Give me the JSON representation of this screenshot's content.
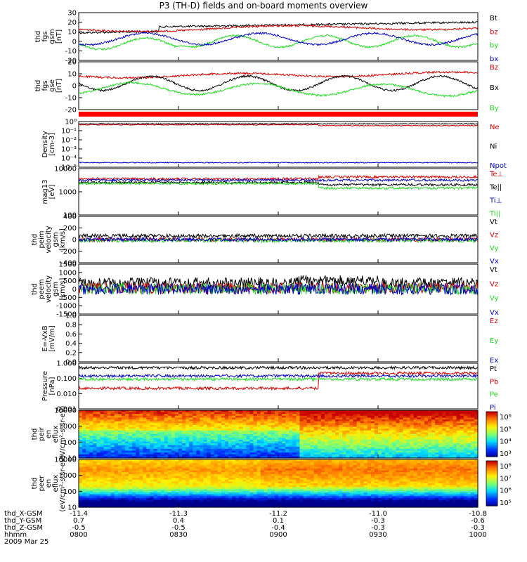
{
  "title": "P3 (TH-D) fields and on-board moments overview",
  "colors": {
    "black": "#000000",
    "red": "#dd0000",
    "green": "#22dd22",
    "blue": "#0000cc"
  },
  "chart_data": [
    {
      "type": "line",
      "id": "fgs-gsm",
      "ylabel": [
        "thd",
        "fgs",
        "gsm",
        "[nT]"
      ],
      "ylim": [
        -20,
        30
      ],
      "yticks": [
        "30",
        "20",
        "10",
        "0",
        "-10",
        "-20"
      ],
      "legend": [
        {
          "name": "Bt",
          "color": "black"
        },
        {
          "name": "bz",
          "color": "red"
        },
        {
          "name": "by",
          "color": "green"
        },
        {
          "name": "bx",
          "color": "blue"
        }
      ]
    },
    {
      "type": "line",
      "id": "fgs-gse",
      "ylabel": [
        "thd",
        "fgs",
        "gse",
        "[nT]"
      ],
      "ylim": [
        -30,
        20
      ],
      "yticks": [
        "20",
        "10",
        "0",
        "-10",
        "-20"
      ],
      "legend": [
        {
          "name": "Bz",
          "color": "red"
        },
        {
          "name": "Bx",
          "color": "black"
        },
        {
          "name": "By",
          "color": "green"
        }
      ]
    },
    {
      "type": "line",
      "id": "density",
      "ylabel": [
        "Density",
        "[cm-3]"
      ],
      "scale": "log",
      "ylim": [
        1e-05,
        1
      ],
      "yticks": [
        "10⁰",
        "10⁻¹",
        "10⁻²",
        "10⁻³",
        "10⁻⁴",
        "10⁻⁵"
      ],
      "legend": [
        {
          "name": "Ne",
          "color": "red"
        },
        {
          "name": "Ni",
          "color": "black"
        },
        {
          "name": "Npot",
          "color": "blue"
        }
      ]
    },
    {
      "type": "line",
      "id": "temperature",
      "ylabel": [
        "mag13",
        "[eV]"
      ],
      "scale": "log",
      "ylim": [
        100,
        10000
      ],
      "yticks": [
        "10000",
        "1000",
        "100"
      ],
      "legend": [
        {
          "name": "Te⊥",
          "color": "red"
        },
        {
          "name": "Te||",
          "color": "black"
        },
        {
          "name": "Ti⊥",
          "color": "blue"
        },
        {
          "name": "Ti||",
          "color": "green"
        }
      ]
    },
    {
      "type": "line",
      "id": "peim-velocity",
      "ylabel": [
        "thd",
        "peim",
        "velocity",
        "gsm",
        "[km/s]"
      ],
      "ylim": [
        -400,
        400
      ],
      "yticks": [
        "400",
        "200",
        "0",
        "-200",
        "-400"
      ],
      "legend": [
        {
          "name": "Vt",
          "color": "black"
        },
        {
          "name": "Vz",
          "color": "red"
        },
        {
          "name": "Vy",
          "color": "green"
        },
        {
          "name": "Vx",
          "color": "blue"
        }
      ]
    },
    {
      "type": "line",
      "id": "peem-velocity",
      "ylabel": [
        "thd",
        "peem",
        "velocity",
        "gsm",
        "[km/s]"
      ],
      "ylim": [
        -1500,
        1500
      ],
      "yticks": [
        "1500",
        "1000",
        "500",
        "0",
        "-500",
        "-1000",
        "-1500"
      ],
      "legend": [
        {
          "name": "Vt",
          "color": "black"
        },
        {
          "name": "Vz",
          "color": "red"
        },
        {
          "name": "Vy",
          "color": "green"
        },
        {
          "name": "Vx",
          "color": "blue"
        }
      ]
    },
    {
      "type": "line",
      "id": "efield",
      "ylabel": [
        "E=-VxB",
        "[mV/m]"
      ],
      "ylim": [
        0,
        1
      ],
      "yticks": [
        "1.0",
        "0.8",
        "0.6",
        "0.4",
        "0.2",
        "0.0"
      ],
      "legend": [
        {
          "name": "Ez",
          "color": "red"
        },
        {
          "name": "Ey",
          "color": "green"
        },
        {
          "name": "Ex",
          "color": "blue"
        }
      ]
    },
    {
      "type": "line",
      "id": "pressure",
      "ylabel": [
        "Pressure",
        "[nPa]"
      ],
      "scale": "log",
      "ylim": [
        0.001,
        1
      ],
      "yticks": [
        "1.000",
        "0.100",
        "0.010",
        "0.001"
      ],
      "legend": [
        {
          "name": "Pt",
          "color": "black"
        },
        {
          "name": "Pb",
          "color": "red"
        },
        {
          "name": "Pe",
          "color": "green"
        },
        {
          "name": "Pi",
          "color": "blue"
        }
      ]
    },
    {
      "type": "heatmap",
      "id": "peir",
      "ylabel": [
        "thd",
        "peir",
        "en",
        "eflux",
        "(eV/cm²-s-sr-eV)"
      ],
      "scale": "log",
      "ylim": [
        10,
        10000
      ],
      "yticks": [
        "10000",
        "1000",
        "100",
        "10"
      ],
      "colorbar": [
        "10⁶",
        "10⁵",
        "10⁴",
        "10³"
      ]
    },
    {
      "type": "heatmap",
      "id": "peer",
      "ylabel": [
        "thd",
        "peer",
        "en",
        "eflux",
        "(eV/cm²-s-sr-eV)"
      ],
      "scale": "log",
      "ylim": [
        10,
        10000
      ],
      "yticks": [
        "10000",
        "1000",
        "100",
        "10"
      ],
      "colorbar": [
        "10⁸",
        "10⁷",
        "10⁶",
        "10⁵"
      ]
    }
  ],
  "xaxis": {
    "rows": [
      {
        "label": "thd_X-GSM",
        "values": [
          "-11.4",
          "-11.3",
          "-11.2",
          "-11.0",
          "-10.8"
        ]
      },
      {
        "label": "thd_Y-GSM",
        "values": [
          "0.7",
          "0.4",
          "0.1",
          "-0.3",
          "-0.6"
        ]
      },
      {
        "label": "thd_Z-GSM",
        "values": [
          "-0.5",
          "-0.5",
          "-0.4",
          "-0.3",
          "-0.3"
        ]
      },
      {
        "label": "hhmm",
        "values": [
          "0800",
          "0830",
          "0900",
          "0930",
          "1000"
        ]
      }
    ],
    "date": "2009 Mar 25"
  }
}
